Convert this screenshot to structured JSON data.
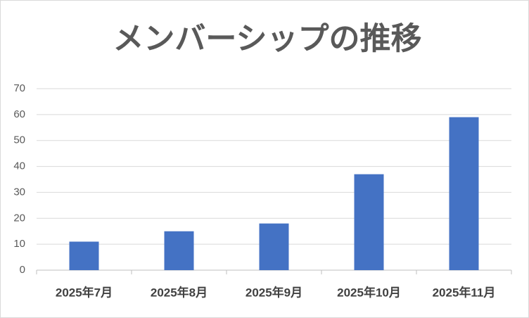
{
  "chart_data": {
    "type": "bar",
    "title": "メンバーシップの推移",
    "categories": [
      "2025年7月",
      "2025年8月",
      "2025年9月",
      "2025年10月",
      "2025年11月"
    ],
    "values": [
      11,
      15,
      18,
      37,
      59
    ],
    "color": "#4472c4",
    "ylim": [
      0,
      70
    ],
    "yticks": [
      0,
      10,
      20,
      30,
      40,
      50,
      60,
      70
    ],
    "grid": true
  }
}
